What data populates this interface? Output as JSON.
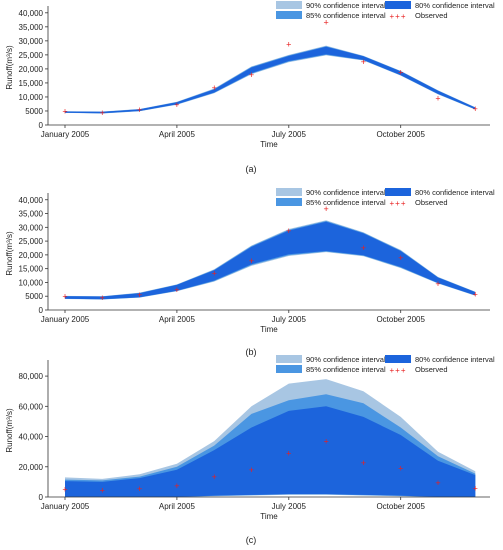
{
  "chart_data": [
    {
      "type": "area",
      "panel_label": "(a)",
      "xlabel": "Time",
      "ylabel": "Runoff(m³/s)",
      "x": [
        "2005-01",
        "2005-02",
        "2005-03",
        "2005-04",
        "2005-05",
        "2005-06",
        "2005-07",
        "2005-08",
        "2005-09",
        "2005-10",
        "2005-11",
        "2005-12"
      ],
      "x_tick_labels": [
        "January 2005",
        "April 2005",
        "July 2005",
        "October 2005"
      ],
      "y_ticks": [
        0,
        5000,
        10000,
        15000,
        20000,
        25000,
        30000,
        35000,
        40000
      ],
      "y_tick_labels": [
        "0",
        "5000",
        "10,000",
        "15,000",
        "20,000",
        "25,000",
        "30,000",
        "35,000",
        "40,000"
      ],
      "ylim": [
        0,
        41000
      ],
      "legend": [
        "90% confidence interval",
        "85% confidence interval",
        "80% confidence interval",
        "Observed"
      ],
      "legend_placement": "top-right",
      "series": [
        {
          "name": "90% confidence interval",
          "lower": [
            4300,
            4100,
            4900,
            7200,
            11300,
            18100,
            22400,
            24800,
            23000,
            17600,
            10900,
            5500
          ],
          "upper": [
            4900,
            4800,
            5700,
            8300,
            13000,
            20900,
            25000,
            28300,
            24700,
            19300,
            12400,
            6300
          ]
        },
        {
          "name": "85% confidence interval",
          "lower": [
            4350,
            4150,
            4950,
            7300,
            11450,
            18300,
            22600,
            25000,
            23100,
            17700,
            11000,
            5550
          ],
          "upper": [
            4850,
            4750,
            5650,
            8200,
            12850,
            20700,
            24800,
            28100,
            24600,
            19200,
            12300,
            6250
          ]
        },
        {
          "name": "80% confidence interval",
          "lower": [
            4400,
            4200,
            5000,
            7400,
            11600,
            18500,
            22800,
            25200,
            23200,
            17800,
            11100,
            5600
          ],
          "upper": [
            4800,
            4700,
            5600,
            8100,
            12700,
            20500,
            24600,
            27900,
            24500,
            19100,
            12200,
            6200
          ]
        },
        {
          "name": "Observed",
          "values": [
            4900,
            4300,
            5400,
            7200,
            13200,
            17800,
            28700,
            36600,
            22500,
            18800,
            9400,
            5700
          ]
        }
      ]
    },
    {
      "type": "area",
      "panel_label": "(b)",
      "xlabel": "Time",
      "ylabel": "Runoff(m³/s)",
      "x": [
        "2005-01",
        "2005-02",
        "2005-03",
        "2005-04",
        "2005-05",
        "2005-06",
        "2005-07",
        "2005-08",
        "2005-09",
        "2005-10",
        "2005-11",
        "2005-12"
      ],
      "x_tick_labels": [
        "January 2005",
        "April 2005",
        "July 2005",
        "October 2005"
      ],
      "y_ticks": [
        0,
        5000,
        10000,
        15000,
        20000,
        25000,
        30000,
        35000,
        40000
      ],
      "y_tick_labels": [
        "0",
        "5000",
        "10,000",
        "15,000",
        "20,000",
        "25,000",
        "30,000",
        "35,000",
        "40,000"
      ],
      "ylim": [
        0,
        41000
      ],
      "legend": [
        "90% confidence interval",
        "85% confidence interval",
        "80% confidence interval",
        "Observed"
      ],
      "legend_placement": "top-right",
      "series": [
        {
          "name": "90% confidence interval",
          "lower": [
            4000,
            3800,
            4500,
            6800,
            10300,
            16000,
            19600,
            21000,
            19500,
            15200,
            9600,
            5200
          ],
          "upper": [
            5100,
            5000,
            6300,
            9300,
            14800,
            23400,
            29400,
            32600,
            28200,
            21800,
            12000,
            6600
          ]
        },
        {
          "name": "85% confidence interval",
          "lower": [
            4050,
            3850,
            4550,
            6900,
            10500,
            16300,
            19900,
            21200,
            19700,
            15400,
            9700,
            5250
          ],
          "upper": [
            5050,
            4950,
            6200,
            9200,
            14600,
            23200,
            29100,
            32300,
            28000,
            21600,
            11900,
            6550
          ]
        },
        {
          "name": "80% confidence interval",
          "lower": [
            4100,
            3900,
            4600,
            7000,
            10700,
            16600,
            20200,
            21400,
            19900,
            15600,
            9800,
            5300
          ],
          "upper": [
            5000,
            4900,
            6100,
            9100,
            14400,
            22900,
            28800,
            32000,
            27800,
            21400,
            11800,
            6500
          ]
        },
        {
          "name": "Observed",
          "values": [
            4900,
            4300,
            5400,
            7200,
            13200,
            17800,
            28700,
            36600,
            22500,
            18800,
            9400,
            5700
          ]
        }
      ]
    },
    {
      "type": "area",
      "panel_label": "(c)",
      "xlabel": "Time",
      "ylabel": "Runoff(m³/s)",
      "x": [
        "2005-01",
        "2005-02",
        "2005-03",
        "2005-04",
        "2005-05",
        "2005-06",
        "2005-07",
        "2005-08",
        "2005-09",
        "2005-10",
        "2005-11",
        "2005-12"
      ],
      "x_tick_labels": [
        "January 2005",
        "April 2005",
        "July 2005",
        "October 2005"
      ],
      "y_ticks": [
        0,
        20000,
        40000,
        60000,
        80000
      ],
      "y_tick_labels": [
        "0",
        "20,000",
        "40,000",
        "60,000",
        "80,000"
      ],
      "ylim": [
        0,
        88000
      ],
      "legend": [
        "90% confidence interval",
        "85% confidence interval",
        "80% confidence interval",
        "Observed"
      ],
      "legend_placement": "top-right",
      "series": [
        {
          "name": "90% confidence interval",
          "lower": [
            0,
            0,
            0,
            0,
            500,
            1000,
            1500,
            1500,
            1000,
            500,
            0,
            0
          ],
          "upper": [
            13000,
            12000,
            15000,
            22000,
            37000,
            60000,
            75000,
            78000,
            70000,
            53000,
            30000,
            17000
          ]
        },
        {
          "name": "85% confidence interval",
          "lower": [
            0,
            0,
            0,
            0,
            700,
            1200,
            1700,
            1700,
            1200,
            700,
            0,
            0
          ],
          "upper": [
            11500,
            11000,
            13500,
            20000,
            34000,
            55000,
            64000,
            68000,
            62000,
            46000,
            27000,
            15500
          ]
        },
        {
          "name": "80% confidence interval",
          "lower": [
            0,
            0,
            0,
            0,
            900,
            1400,
            1900,
            1900,
            1400,
            900,
            0,
            0
          ],
          "upper": [
            10500,
            10000,
            12500,
            18000,
            31000,
            46000,
            57000,
            60000,
            53000,
            41000,
            24000,
            14500
          ]
        },
        {
          "name": "Observed",
          "values": [
            4900,
            4300,
            5400,
            7200,
            13200,
            17800,
            28700,
            36600,
            22500,
            18800,
            9400,
            5700
          ]
        }
      ]
    }
  ],
  "colors": {
    "ci90": "#a8c6e3",
    "ci85": "#4a96e2",
    "ci80": "#1c64dc",
    "observed": "#e82020",
    "axis": "#333333",
    "text": "#222222"
  }
}
